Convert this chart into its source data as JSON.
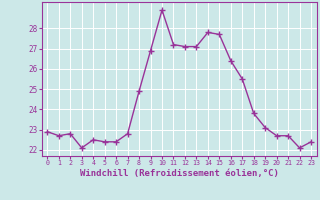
{
  "x": [
    0,
    1,
    2,
    3,
    4,
    5,
    6,
    7,
    8,
    9,
    10,
    11,
    12,
    13,
    14,
    15,
    16,
    17,
    18,
    19,
    20,
    21,
    22,
    23
  ],
  "y": [
    22.9,
    22.7,
    22.8,
    22.1,
    22.5,
    22.4,
    22.4,
    22.8,
    24.9,
    26.9,
    28.9,
    27.2,
    27.1,
    27.1,
    27.8,
    27.7,
    26.4,
    25.5,
    23.8,
    23.1,
    22.7,
    22.7,
    22.1,
    22.4
  ],
  "line_color": "#993399",
  "marker": "+",
  "marker_size": 4,
  "xlabel": "Windchill (Refroidissement éolien,°C)",
  "xlabel_fontsize": 6.5,
  "xtick_labels": [
    "0",
    "1",
    "2",
    "3",
    "4",
    "5",
    "6",
    "7",
    "8",
    "9",
    "10",
    "11",
    "12",
    "13",
    "14",
    "15",
    "16",
    "17",
    "18",
    "19",
    "20",
    "21",
    "22",
    "23"
  ],
  "ytick_labels": [
    "22",
    "23",
    "24",
    "25",
    "26",
    "27",
    "28"
  ],
  "yticks": [
    22,
    23,
    24,
    25,
    26,
    27,
    28
  ],
  "ylim": [
    21.7,
    29.3
  ],
  "xlim": [
    -0.5,
    23.5
  ],
  "background_color": "#cce8e8",
  "grid_color": "#ffffff",
  "tick_color": "#993399",
  "label_color": "#993399",
  "linewidth": 1.0,
  "spine_color": "#993399"
}
